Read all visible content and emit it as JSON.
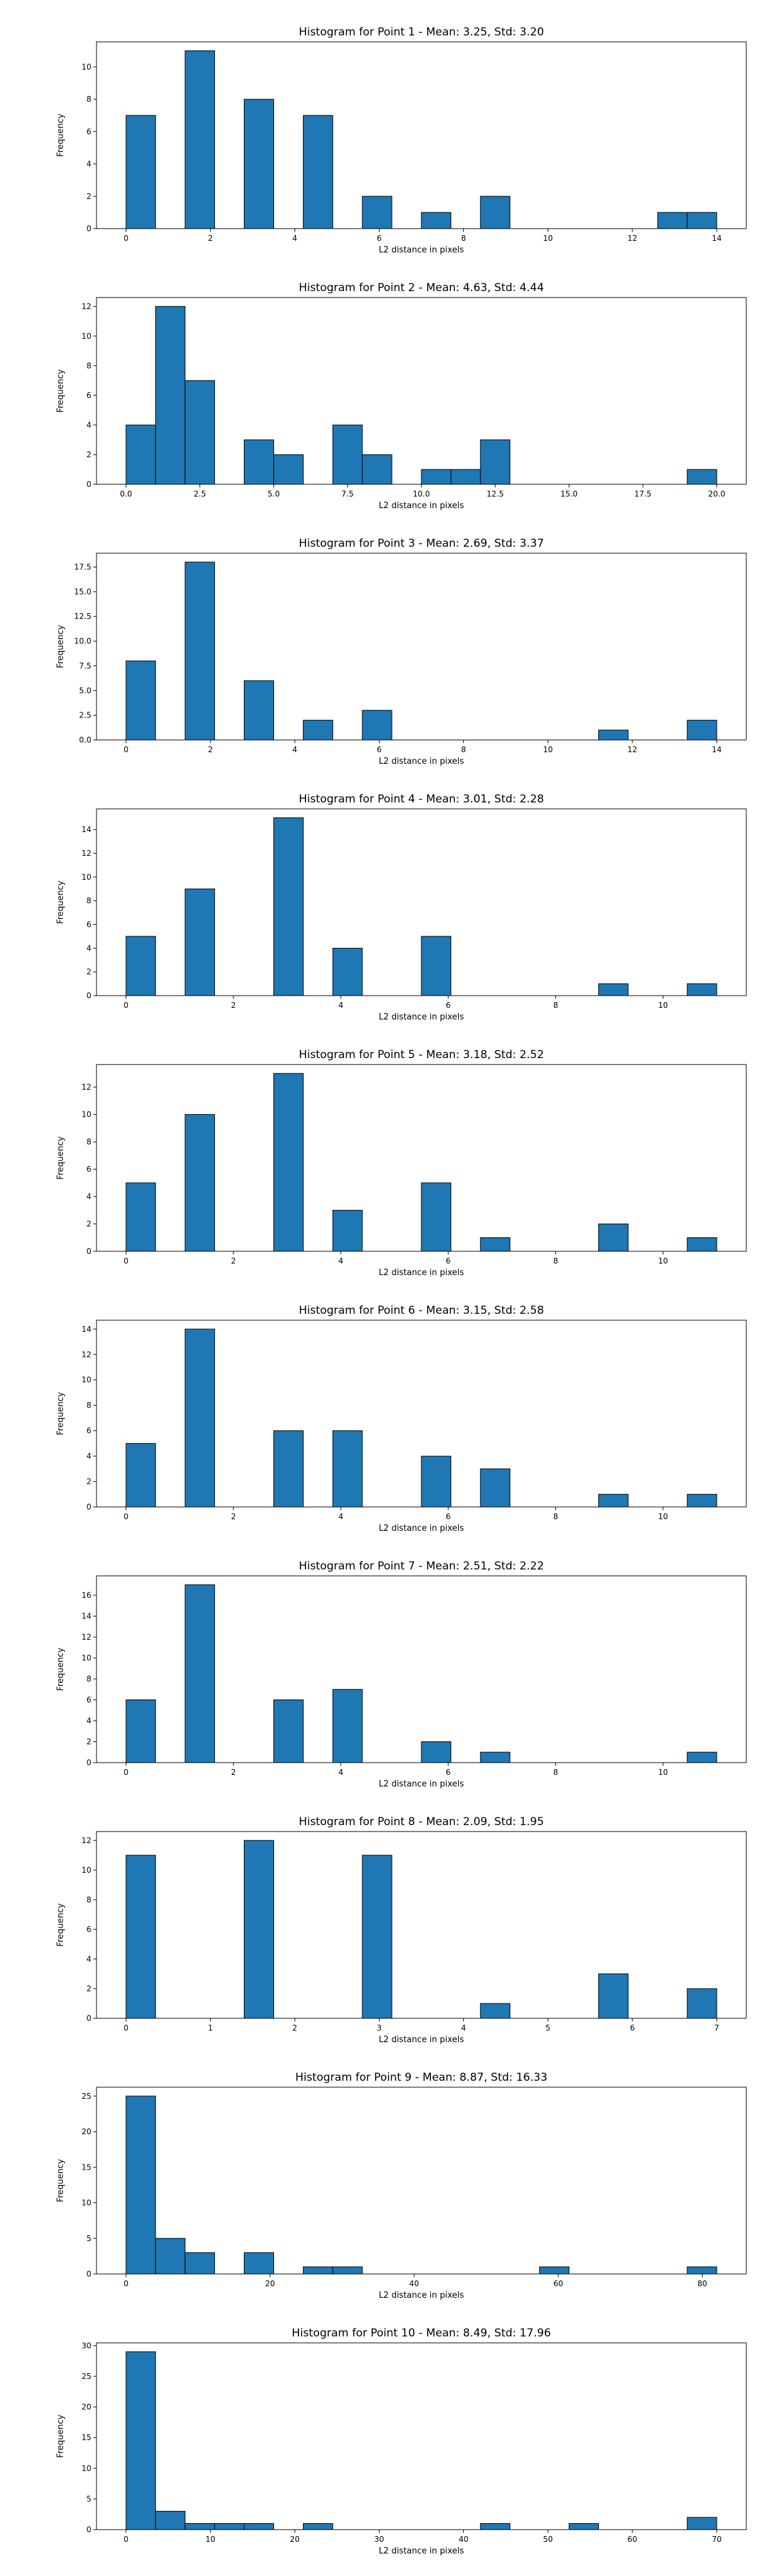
{
  "chart_data": [
    {
      "type": "bar",
      "title": "Histogram for Point 1 - Mean: 3.25, Std: 3.20",
      "xlabel": "L2 distance in pixels",
      "ylabel": "Frequency",
      "xlim": [
        -0.7,
        14.7
      ],
      "ylim": [
        0,
        11.55
      ],
      "x_ticks": [
        0,
        2,
        4,
        6,
        8,
        10,
        12,
        14
      ],
      "x_tick_labels": [
        "0",
        "2",
        "4",
        "6",
        "8",
        "10",
        "12",
        "14"
      ],
      "y_ticks": [
        0,
        2,
        4,
        6,
        8,
        10
      ],
      "y_tick_labels": [
        "0",
        "2",
        "4",
        "6",
        "8",
        "10"
      ],
      "bin_edges": [
        0,
        0.7,
        1.4,
        2.1,
        2.8,
        3.5,
        4.2,
        4.9,
        5.6,
        6.3,
        7.0,
        7.7,
        8.4,
        9.1,
        9.8,
        10.5,
        11.2,
        11.9,
        12.6,
        13.3,
        14.0
      ],
      "values": [
        7,
        0,
        11,
        0,
        8,
        0,
        7,
        0,
        2,
        0,
        1,
        0,
        2,
        0,
        0,
        0,
        0,
        0,
        1,
        1
      ]
    },
    {
      "type": "bar",
      "title": "Histogram for Point 2 - Mean: 4.63, Std: 4.44",
      "xlabel": "L2 distance in pixels",
      "ylabel": "Frequency",
      "xlim": [
        -1.0,
        21.0
      ],
      "ylim": [
        0,
        12.6
      ],
      "x_ticks": [
        0,
        2.5,
        5,
        7.5,
        10,
        12.5,
        15,
        17.5,
        20
      ],
      "x_tick_labels": [
        "0.0",
        "2.5",
        "5.0",
        "7.5",
        "10.0",
        "12.5",
        "15.0",
        "17.5",
        "20.0"
      ],
      "y_ticks": [
        0,
        2,
        4,
        6,
        8,
        10,
        12
      ],
      "y_tick_labels": [
        "0",
        "2",
        "4",
        "6",
        "8",
        "10",
        "12"
      ],
      "bin_edges": [
        0,
        1,
        2,
        3,
        4,
        5,
        6,
        7,
        8,
        9,
        10,
        11,
        12,
        13,
        14,
        15,
        16,
        17,
        18,
        19,
        20
      ],
      "values": [
        4,
        12,
        7,
        0,
        3,
        2,
        0,
        4,
        2,
        0,
        1,
        1,
        3,
        0,
        0,
        0,
        0,
        0,
        0,
        1
      ]
    },
    {
      "type": "bar",
      "title": "Histogram for Point 3 - Mean: 2.69, Std: 3.37",
      "xlabel": "L2 distance in pixels",
      "ylabel": "Frequency",
      "xlim": [
        -0.7,
        14.7
      ],
      "ylim": [
        0,
        18.9
      ],
      "x_ticks": [
        0,
        2,
        4,
        6,
        8,
        10,
        12,
        14
      ],
      "x_tick_labels": [
        "0",
        "2",
        "4",
        "6",
        "8",
        "10",
        "12",
        "14"
      ],
      "y_ticks": [
        0,
        2.5,
        5,
        7.5,
        10,
        12.5,
        15,
        17.5
      ],
      "y_tick_labels": [
        "0.0",
        "2.5",
        "5.0",
        "7.5",
        "10.0",
        "12.5",
        "15.0",
        "17.5"
      ],
      "bin_edges": [
        0,
        0.7,
        1.4,
        2.1,
        2.8,
        3.5,
        4.2,
        4.9,
        5.6,
        6.3,
        7.0,
        7.7,
        8.4,
        9.1,
        9.8,
        10.5,
        11.2,
        11.9,
        12.6,
        13.3,
        14.0
      ],
      "values": [
        8,
        0,
        18,
        0,
        6,
        0,
        2,
        0,
        3,
        0,
        0,
        0,
        0,
        0,
        0,
        0,
        1,
        0,
        0,
        2
      ]
    },
    {
      "type": "bar",
      "title": "Histogram for Point 4 - Mean: 3.01, Std: 2.28",
      "xlabel": "L2 distance in pixels",
      "ylabel": "Frequency",
      "xlim": [
        -0.55,
        11.55
      ],
      "ylim": [
        0,
        15.75
      ],
      "x_ticks": [
        0,
        2,
        4,
        6,
        8,
        10
      ],
      "x_tick_labels": [
        "0",
        "2",
        "4",
        "6",
        "8",
        "10"
      ],
      "y_ticks": [
        0,
        2,
        4,
        6,
        8,
        10,
        12,
        14
      ],
      "y_tick_labels": [
        "0",
        "2",
        "4",
        "6",
        "8",
        "10",
        "12",
        "14"
      ],
      "bin_edges": [
        0,
        0.55,
        1.1,
        1.65,
        2.2,
        2.75,
        3.3,
        3.85,
        4.4,
        4.95,
        5.5,
        6.05,
        6.6,
        7.15,
        7.7,
        8.25,
        8.8,
        9.35,
        9.9,
        10.45,
        11.0
      ],
      "values": [
        5,
        0,
        9,
        0,
        0,
        15,
        0,
        4,
        0,
        0,
        5,
        0,
        0,
        0,
        0,
        0,
        1,
        0,
        0,
        1
      ]
    },
    {
      "type": "bar",
      "title": "Histogram for Point 5 - Mean: 3.18, Std: 2.52",
      "xlabel": "L2 distance in pixels",
      "ylabel": "Frequency",
      "xlim": [
        -0.55,
        11.55
      ],
      "ylim": [
        0,
        13.65
      ],
      "x_ticks": [
        0,
        2,
        4,
        6,
        8,
        10
      ],
      "x_tick_labels": [
        "0",
        "2",
        "4",
        "6",
        "8",
        "10"
      ],
      "y_ticks": [
        0,
        2,
        4,
        6,
        8,
        10,
        12
      ],
      "y_tick_labels": [
        "0",
        "2",
        "4",
        "6",
        "8",
        "10",
        "12"
      ],
      "bin_edges": [
        0,
        0.55,
        1.1,
        1.65,
        2.2,
        2.75,
        3.3,
        3.85,
        4.4,
        4.95,
        5.5,
        6.05,
        6.6,
        7.15,
        7.7,
        8.25,
        8.8,
        9.35,
        9.9,
        10.45,
        11.0
      ],
      "values": [
        5,
        0,
        10,
        0,
        0,
        13,
        0,
        3,
        0,
        0,
        5,
        0,
        1,
        0,
        0,
        0,
        2,
        0,
        0,
        1
      ]
    },
    {
      "type": "bar",
      "title": "Histogram for Point 6 - Mean: 3.15, Std: 2.58",
      "xlabel": "L2 distance in pixels",
      "ylabel": "Frequency",
      "xlim": [
        -0.55,
        11.55
      ],
      "ylim": [
        0,
        14.7
      ],
      "x_ticks": [
        0,
        2,
        4,
        6,
        8,
        10
      ],
      "x_tick_labels": [
        "0",
        "2",
        "4",
        "6",
        "8",
        "10"
      ],
      "y_ticks": [
        0,
        2,
        4,
        6,
        8,
        10,
        12,
        14
      ],
      "y_tick_labels": [
        "0",
        "2",
        "4",
        "6",
        "8",
        "10",
        "12",
        "14"
      ],
      "bin_edges": [
        0,
        0.55,
        1.1,
        1.65,
        2.2,
        2.75,
        3.3,
        3.85,
        4.4,
        4.95,
        5.5,
        6.05,
        6.6,
        7.15,
        7.7,
        8.25,
        8.8,
        9.35,
        9.9,
        10.45,
        11.0
      ],
      "values": [
        5,
        0,
        14,
        0,
        0,
        6,
        0,
        6,
        0,
        0,
        4,
        0,
        3,
        0,
        0,
        0,
        1,
        0,
        0,
        1
      ]
    },
    {
      "type": "bar",
      "title": "Histogram for Point 7 - Mean: 2.51, Std: 2.22",
      "xlabel": "L2 distance in pixels",
      "ylabel": "Frequency",
      "xlim": [
        -0.55,
        11.55
      ],
      "ylim": [
        0,
        17.85
      ],
      "x_ticks": [
        0,
        2,
        4,
        6,
        8,
        10
      ],
      "x_tick_labels": [
        "0",
        "2",
        "4",
        "6",
        "8",
        "10"
      ],
      "y_ticks": [
        0,
        2,
        4,
        6,
        8,
        10,
        12,
        14,
        16
      ],
      "y_tick_labels": [
        "0",
        "2",
        "4",
        "6",
        "8",
        "10",
        "12",
        "14",
        "16"
      ],
      "bin_edges": [
        0,
        0.55,
        1.1,
        1.65,
        2.2,
        2.75,
        3.3,
        3.85,
        4.4,
        4.95,
        5.5,
        6.05,
        6.6,
        7.15,
        7.7,
        8.25,
        8.8,
        9.35,
        9.9,
        10.45,
        11.0
      ],
      "values": [
        6,
        0,
        17,
        0,
        0,
        6,
        0,
        7,
        0,
        0,
        2,
        0,
        1,
        0,
        0,
        0,
        0,
        0,
        0,
        1
      ]
    },
    {
      "type": "bar",
      "title": "Histogram for Point 8 - Mean: 2.09, Std: 1.95",
      "xlabel": "L2 distance in pixels",
      "ylabel": "Frequency",
      "xlim": [
        -0.35,
        7.35
      ],
      "ylim": [
        0,
        12.6
      ],
      "x_ticks": [
        0,
        1,
        2,
        3,
        4,
        5,
        6,
        7
      ],
      "x_tick_labels": [
        "0",
        "1",
        "2",
        "3",
        "4",
        "5",
        "6",
        "7"
      ],
      "y_ticks": [
        0,
        2,
        4,
        6,
        8,
        10,
        12
      ],
      "y_tick_labels": [
        "0",
        "2",
        "4",
        "6",
        "8",
        "10",
        "12"
      ],
      "bin_edges": [
        0,
        0.35,
        0.7,
        1.05,
        1.4,
        1.75,
        2.1,
        2.45,
        2.8,
        3.15,
        3.5,
        3.85,
        4.2,
        4.55,
        4.9,
        5.25,
        5.6,
        5.95,
        6.3,
        6.65,
        7.0
      ],
      "values": [
        11,
        0,
        0,
        0,
        12,
        0,
        0,
        0,
        11,
        0,
        0,
        0,
        1,
        0,
        0,
        0,
        3,
        0,
        0,
        2
      ]
    },
    {
      "type": "bar",
      "title": "Histogram for Point 9 - Mean: 8.87, Std: 16.33",
      "xlabel": "L2 distance in pixels",
      "ylabel": "Frequency",
      "xlim": [
        -4.1,
        86.1
      ],
      "ylim": [
        0,
        26.25
      ],
      "x_ticks": [
        0,
        20,
        40,
        60,
        80
      ],
      "x_tick_labels": [
        "0",
        "20",
        "40",
        "60",
        "80"
      ],
      "y_ticks": [
        0,
        5,
        10,
        15,
        20,
        25
      ],
      "y_tick_labels": [
        "0",
        "5",
        "10",
        "15",
        "20",
        "25"
      ],
      "bin_edges": [
        0,
        4.1,
        8.2,
        12.3,
        16.4,
        20.5,
        24.6,
        28.7,
        32.8,
        36.9,
        41.0,
        45.1,
        49.2,
        53.3,
        57.4,
        61.5,
        65.6,
        69.7,
        73.8,
        77.9,
        82.0
      ],
      "values": [
        25,
        5,
        3,
        0,
        3,
        0,
        1,
        1,
        0,
        0,
        0,
        0,
        0,
        0,
        1,
        0,
        0,
        0,
        0,
        1
      ]
    },
    {
      "type": "bar",
      "title": "Histogram for Point 10 - Mean: 8.49, Std: 17.96",
      "xlabel": "L2 distance in pixels",
      "ylabel": "Frequency",
      "xlim": [
        -3.5,
        73.5
      ],
      "ylim": [
        0,
        30.45
      ],
      "x_ticks": [
        0,
        10,
        20,
        30,
        40,
        50,
        60,
        70
      ],
      "x_tick_labels": [
        "0",
        "10",
        "20",
        "30",
        "40",
        "50",
        "60",
        "70"
      ],
      "y_ticks": [
        0,
        5,
        10,
        15,
        20,
        25,
        30
      ],
      "y_tick_labels": [
        "0",
        "5",
        "10",
        "15",
        "20",
        "25",
        "30"
      ],
      "bin_edges": [
        0,
        3.5,
        7.0,
        10.5,
        14.0,
        17.5,
        21.0,
        24.5,
        28.0,
        31.5,
        35.0,
        38.5,
        42.0,
        45.5,
        49.0,
        52.5,
        56.0,
        59.5,
        63.0,
        66.5,
        70.0
      ],
      "values": [
        29,
        3,
        1,
        1,
        1,
        0,
        1,
        0,
        0,
        0,
        0,
        0,
        1,
        0,
        0,
        1,
        0,
        0,
        0,
        2
      ]
    }
  ]
}
